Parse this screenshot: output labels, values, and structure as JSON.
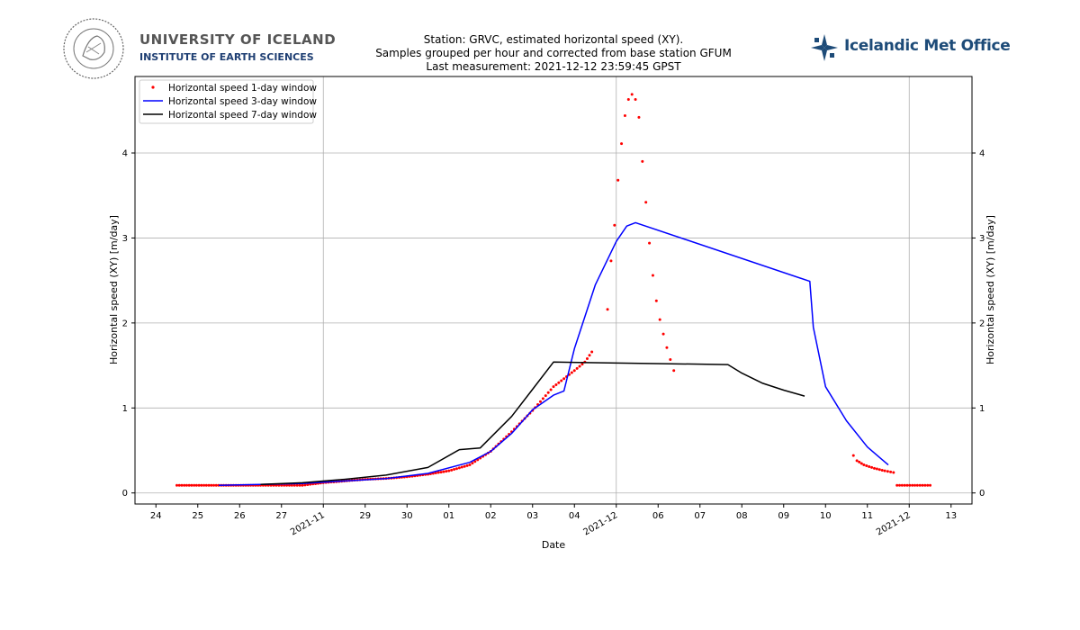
{
  "header": {
    "university_name": "UNIVERSITY OF ICELAND",
    "institute_name": "INSTITUTE OF EARTH SCIENCES",
    "title_line1": "Station: GRVC, estimated horizontal speed (XY).",
    "title_line2": "Samples grouped per hour and corrected from base station GFUM",
    "title_line3": "Last measurement: 2021-12-12 23:59:45 GPST",
    "met_office_name": "Icelandic Met Office"
  },
  "colors": {
    "series_1day": "#ff0000",
    "series_3day": "#0000ff",
    "series_7day": "#000000",
    "grid": "#b0b0b0",
    "met_brand": "#1d4b78"
  },
  "chart_data": {
    "type": "line",
    "xlabel": "Date",
    "ylabel_left": "Horizontal speed (XY) [m/day]",
    "ylabel_right": "Horizontal speed (XY) [m/day]",
    "xlim": [
      "2021-11-23T12:00",
      "2021-12-13T12:00"
    ],
    "ylim": [
      -0.13,
      4.9
    ],
    "grid": true,
    "legend_position": "top-left",
    "y_ticks": [
      0,
      1,
      2,
      3,
      4
    ],
    "x_major_ticks": [
      {
        "date": "2021-11-24",
        "label": "24"
      },
      {
        "date": "2021-11-25",
        "label": "25"
      },
      {
        "date": "2021-11-26",
        "label": "26"
      },
      {
        "date": "2021-11-27",
        "label": "27"
      },
      {
        "date": "2021-11-29",
        "label": "29"
      },
      {
        "date": "2021-11-30",
        "label": "30"
      },
      {
        "date": "2021-12-01",
        "label": "01"
      },
      {
        "date": "2021-12-02",
        "label": "02"
      },
      {
        "date": "2021-12-03",
        "label": "03"
      },
      {
        "date": "2021-12-04",
        "label": "04"
      },
      {
        "date": "2021-12-06",
        "label": "06"
      },
      {
        "date": "2021-12-07",
        "label": "07"
      },
      {
        "date": "2021-12-08",
        "label": "08"
      },
      {
        "date": "2021-12-09",
        "label": "09"
      },
      {
        "date": "2021-12-10",
        "label": "10"
      },
      {
        "date": "2021-12-11",
        "label": "11"
      },
      {
        "date": "2021-12-13",
        "label": "13"
      }
    ],
    "x_rotated_labels": [
      {
        "date": "2021-11-28",
        "label": "2021-11"
      },
      {
        "date": "2021-12-05",
        "label": "2021-12"
      },
      {
        "date": "2021-12-12",
        "label": "2021-12"
      }
    ],
    "x_grid_dates": [
      "2021-11-28",
      "2021-12-05",
      "2021-12-12"
    ],
    "series": [
      {
        "name": "Horizontal speed 1-day window",
        "style": "points",
        "segments": [
          [
            [
              "2021-11-24T12:00",
              0.09
            ],
            [
              "2021-11-25T12:00",
              0.09
            ],
            [
              "2021-11-26T12:00",
              0.09
            ],
            [
              "2021-11-27T00:00",
              0.09
            ],
            [
              "2021-11-27T12:00",
              0.09
            ],
            [
              "2021-11-28T00:00",
              0.12
            ],
            [
              "2021-11-28T12:00",
              0.14
            ],
            [
              "2021-11-29T00:00",
              0.16
            ],
            [
              "2021-11-29T12:00",
              0.17
            ],
            [
              "2021-11-30T00:00",
              0.19
            ],
            [
              "2021-11-30T12:00",
              0.22
            ],
            [
              "2021-12-01T00:00",
              0.26
            ],
            [
              "2021-12-01T12:00",
              0.33
            ],
            [
              "2021-12-02T00:00",
              0.49
            ],
            [
              "2021-12-02T12:00",
              0.72
            ],
            [
              "2021-12-03T00:00",
              0.97
            ],
            [
              "2021-12-03T12:00",
              1.25
            ],
            [
              "2021-12-04T00:00",
              1.44
            ],
            [
              "2021-12-04T06:00",
              1.54
            ],
            [
              "2021-12-04T10:00",
              1.66
            ]
          ],
          [
            [
              "2021-12-04T19:00",
              2.16
            ],
            [
              "2021-12-04T21:00",
              2.73
            ],
            [
              "2021-12-04T23:00",
              3.15
            ],
            [
              "2021-12-05T01:00",
              3.68
            ],
            [
              "2021-12-05T03:00",
              4.11
            ],
            [
              "2021-12-05T05:00",
              4.44
            ],
            [
              "2021-12-05T07:00",
              4.63
            ],
            [
              "2021-12-05T09:00",
              4.69
            ],
            [
              "2021-12-05T11:00",
              4.63
            ],
            [
              "2021-12-05T13:00",
              4.42
            ],
            [
              "2021-12-05T15:00",
              3.9
            ],
            [
              "2021-12-05T17:00",
              3.42
            ],
            [
              "2021-12-05T19:00",
              2.94
            ],
            [
              "2021-12-05T21:00",
              2.56
            ],
            [
              "2021-12-05T23:00",
              2.26
            ],
            [
              "2021-12-06T01:00",
              2.04
            ],
            [
              "2021-12-06T03:00",
              1.87
            ],
            [
              "2021-12-06T05:00",
              1.71
            ],
            [
              "2021-12-06T07:00",
              1.57
            ],
            [
              "2021-12-06T09:00",
              1.44
            ]
          ],
          [
            [
              "2021-12-10T16:00",
              0.44
            ],
            [
              "2021-12-10T18:00",
              0.38
            ],
            [
              "2021-12-10T22:00",
              0.33
            ],
            [
              "2021-12-11T04:00",
              0.29
            ],
            [
              "2021-12-11T10:00",
              0.26
            ],
            [
              "2021-12-11T15:00",
              0.24
            ]
          ],
          [
            [
              "2021-12-11T17:00",
              0.09
            ],
            [
              "2021-12-12T12:00",
              0.09
            ]
          ]
        ]
      },
      {
        "name": "Horizontal speed 3-day window",
        "style": "line",
        "segments": [
          [
            [
              "2021-11-25T12:00",
              0.09
            ],
            [
              "2021-11-26T12:00",
              0.1
            ],
            [
              "2021-11-27T12:00",
              0.11
            ],
            [
              "2021-11-28T12:00",
              0.14
            ],
            [
              "2021-11-29T12:00",
              0.17
            ],
            [
              "2021-11-30T12:00",
              0.23
            ],
            [
              "2021-12-01T12:00",
              0.36
            ],
            [
              "2021-12-02T00:00",
              0.49
            ],
            [
              "2021-12-02T12:00",
              0.7
            ],
            [
              "2021-12-03T00:00",
              0.98
            ],
            [
              "2021-12-03T12:00",
              1.15
            ],
            [
              "2021-12-03T18:00",
              1.2
            ],
            [
              "2021-12-04T00:00",
              1.7
            ],
            [
              "2021-12-04T12:00",
              2.45
            ],
            [
              "2021-12-05T00:00",
              2.96
            ],
            [
              "2021-12-05T06:00",
              3.14
            ],
            [
              "2021-12-05T11:00",
              3.18
            ],
            [
              "2021-12-09T15:00",
              2.49
            ],
            [
              "2021-12-09T17:00",
              1.95
            ],
            [
              "2021-12-10T00:00",
              1.25
            ],
            [
              "2021-12-10T12:00",
              0.85
            ],
            [
              "2021-12-11T00:00",
              0.54
            ],
            [
              "2021-12-11T12:00",
              0.33
            ]
          ]
        ]
      },
      {
        "name": "Horizontal speed 7-day window",
        "style": "line",
        "segments": [
          [
            [
              "2021-11-26T12:00",
              0.1
            ],
            [
              "2021-11-27T12:00",
              0.12
            ],
            [
              "2021-11-28T12:00",
              0.16
            ],
            [
              "2021-11-29T12:00",
              0.21
            ],
            [
              "2021-11-30T12:00",
              0.3
            ],
            [
              "2021-12-01T06:00",
              0.51
            ],
            [
              "2021-12-01T18:00",
              0.53
            ],
            [
              "2021-12-02T12:00",
              0.9
            ],
            [
              "2021-12-03T00:00",
              1.22
            ],
            [
              "2021-12-03T12:00",
              1.54
            ],
            [
              "2021-12-07T16:00",
              1.51
            ],
            [
              "2021-12-08T00:00",
              1.41
            ],
            [
              "2021-12-08T12:00",
              1.29
            ],
            [
              "2021-12-09T00:00",
              1.21
            ],
            [
              "2021-12-09T12:00",
              1.14
            ]
          ]
        ]
      }
    ]
  }
}
